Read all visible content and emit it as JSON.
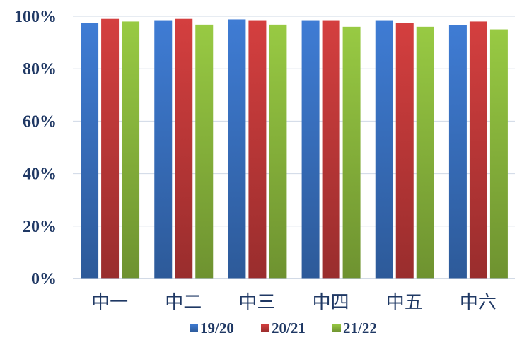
{
  "chart_data": {
    "type": "bar",
    "title": "",
    "xlabel": "",
    "ylabel": "",
    "categories": [
      "中一",
      "中二",
      "中三",
      "中四",
      "中五",
      "中六"
    ],
    "series": [
      {
        "name": "19/20",
        "values": [
          97.5,
          98.5,
          98.8,
          98.5,
          98.5,
          96.5
        ],
        "color": "#3a73c4"
      },
      {
        "name": "20/21",
        "values": [
          99.0,
          99.0,
          98.5,
          98.5,
          97.5,
          98.0
        ],
        "color": "#c43a3a"
      },
      {
        "name": "21/22",
        "values": [
          98.0,
          96.8,
          96.8,
          96.0,
          96.0,
          95.0
        ],
        "color": "#8dbb3e"
      }
    ],
    "ylim": [
      0,
      100
    ],
    "yticks": [
      "0%",
      "20%",
      "40%",
      "60%",
      "80%",
      "100%"
    ],
    "ytick_values": [
      0,
      20,
      40,
      60,
      80,
      100
    ],
    "grid": true,
    "legend_position": "bottom"
  }
}
